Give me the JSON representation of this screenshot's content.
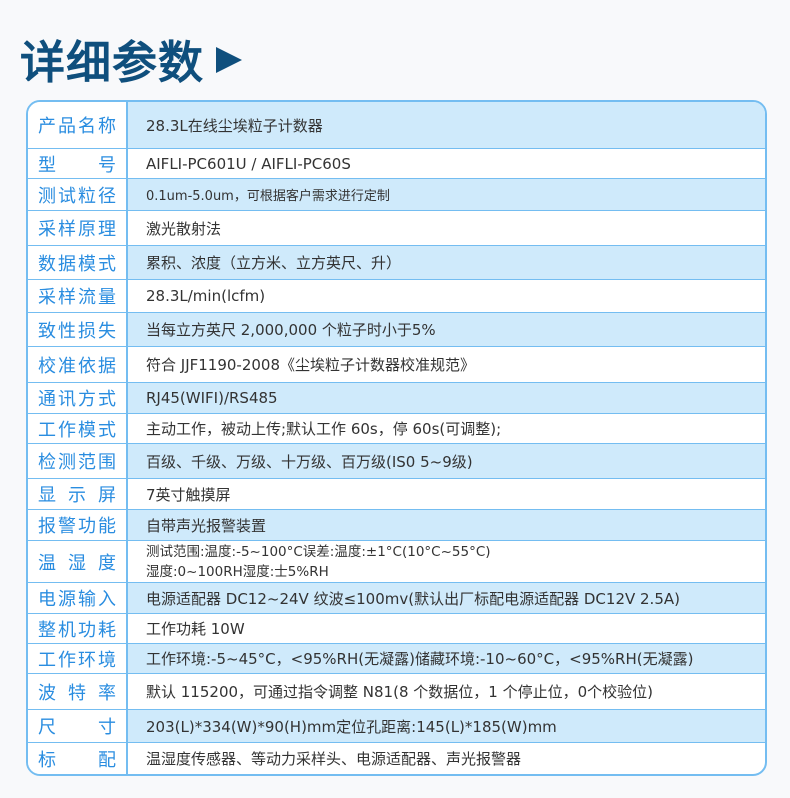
{
  "title": "详细参数",
  "icons": {
    "title_arrow": "triangle-right-icon"
  },
  "colors": {
    "title": "#0f4f7d",
    "label_text": "#2a8de0",
    "border": "#74bdf1",
    "row_highlight": "#cfeafb"
  },
  "rows": [
    {
      "label": "产品名称",
      "value": [
        "28.3L在线尘埃粒子计数器"
      ]
    },
    {
      "label": "型号",
      "value": [
        "AIFLI-PC601U / AIFLI-PC60S"
      ]
    },
    {
      "label": "测试粒径",
      "value": [
        "0.1um-5.0um，可根据客户需求进行定制"
      ]
    },
    {
      "label": "采样原理",
      "value": [
        "激光散射法"
      ]
    },
    {
      "label": "数据模式",
      "value": [
        "累积、浓度（立方米、立方英尺、升）"
      ]
    },
    {
      "label": "采样流量",
      "value": [
        "28.3L/min(lcfm)"
      ]
    },
    {
      "label": "致性损失",
      "value": [
        "当每立方英尺 2,000,000 个粒子时小于5%"
      ]
    },
    {
      "label": "校准依据",
      "value": [
        "符合 JJF1190-2008《尘埃粒子计数器校准规范》"
      ]
    },
    {
      "label": "通讯方式",
      "value": [
        "RJ45(WIFI)/RS485"
      ]
    },
    {
      "label": "工作模式",
      "value": [
        "主动工作，被动上传;默认工作 60s，停 60s(可调整);"
      ]
    },
    {
      "label": "检测范围",
      "value": [
        "百级、千级、万级、十万级、百万级(IS0 5~9级)"
      ]
    },
    {
      "label": "显示屏",
      "value": [
        "7英寸触摸屏"
      ]
    },
    {
      "label": "报警功能",
      "value": [
        "自带声光报警装置"
      ]
    },
    {
      "label": "温湿度",
      "value": [
        "测试范围:温度:-5~100°C误差:温度:±1°C(10°C~55°C)",
        "湿度:0~100RH湿度:士5%RH"
      ]
    },
    {
      "label": "电源输入",
      "value": [
        "电源适配器 DC12~24V 纹波≤100mv(默认出厂标配电源适配器 DC12V 2.5A)"
      ]
    },
    {
      "label": "整机功耗",
      "value": [
        "工作功耗 10W"
      ]
    },
    {
      "label": "工作环境",
      "value": [
        "工作环境:-5~45°C，<95%RH(无凝露)储藏环境:-10~60°C，<95%RH(无凝露)"
      ]
    },
    {
      "label": "波特率",
      "value": [
        "默认 115200，可通过指令调整 N81(8 个数据位，1 个停止位，0个校验位)"
      ]
    },
    {
      "label": "尺寸",
      "value": [
        "203(L)*334(W)*90(H)mm定位孔距离:145(L)*185(W)mm"
      ]
    },
    {
      "label": "标配",
      "value": [
        "温湿度传感器、等动力采样头、电源适配器、声光报警器"
      ]
    }
  ]
}
